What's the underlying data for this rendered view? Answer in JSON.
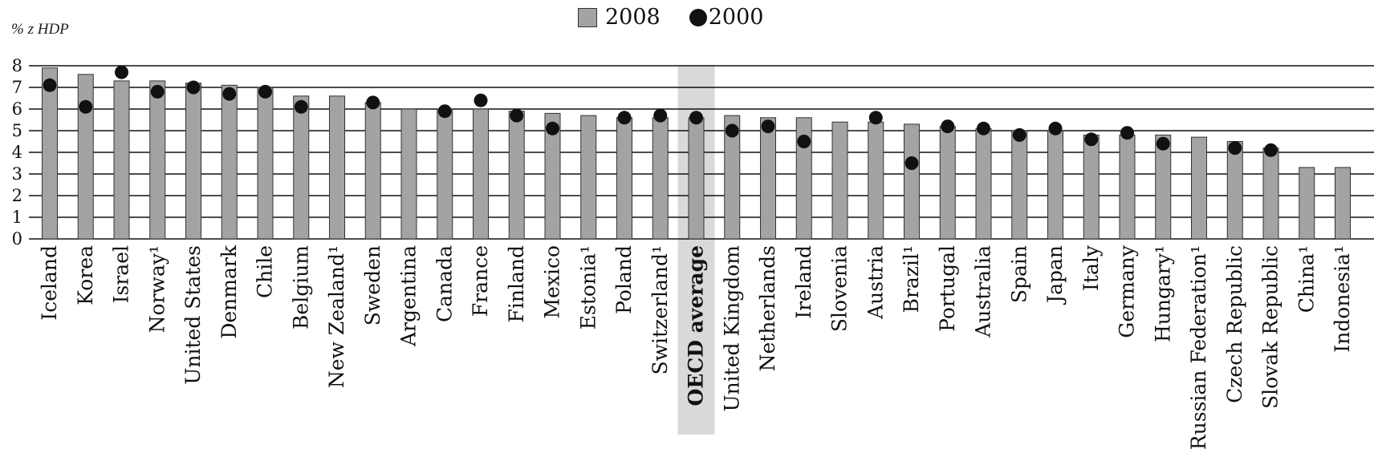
{
  "chart_data": {
    "type": "bar",
    "ylabel": "% z HDP",
    "ylim": [
      0,
      8
    ],
    "yticks": [
      "0",
      "1",
      "2",
      "3",
      "4",
      "5",
      "6",
      "7",
      "8"
    ],
    "grid": true,
    "legend_position": "top-center",
    "highlight_category": "OECD average",
    "categories": [
      "Iceland",
      "Korea",
      "Israel",
      "Norway¹",
      "United States",
      "Denmark",
      "Chile",
      "Belgium",
      "New Zealand¹",
      "Sweden",
      "Argentina",
      "Canada",
      "France",
      "Finland",
      "Mexico",
      "Estonia¹",
      "Poland",
      "Switzerland¹",
      "OECD average",
      "United Kingdom",
      "Netherlands",
      "Ireland",
      "Slovenia",
      "Austria",
      "Brazil¹",
      "Portugal",
      "Australia",
      "Spain",
      "Japan",
      "Italy",
      "Germany",
      "Hungary¹",
      "Russian Federation¹",
      "Czech Republic",
      "Slovak Republic",
      "China¹",
      "Indonesia¹"
    ],
    "series": [
      {
        "name": "2008",
        "mark": "bar",
        "color": "#a3a3a3",
        "values": [
          7.9,
          7.6,
          7.3,
          7.3,
          7.2,
          7.1,
          7.0,
          6.6,
          6.6,
          6.3,
          6.0,
          6.0,
          6.0,
          5.9,
          5.8,
          5.7,
          5.6,
          5.6,
          5.6,
          5.7,
          5.6,
          5.6,
          5.4,
          5.4,
          5.3,
          5.2,
          5.1,
          5.0,
          5.0,
          4.8,
          4.8,
          4.8,
          4.7,
          4.5,
          4.2,
          3.3,
          3.3
        ]
      },
      {
        "name": "2000",
        "mark": "dot",
        "color": "#111111",
        "values": [
          7.1,
          6.1,
          7.7,
          6.8,
          7.0,
          6.7,
          6.8,
          6.1,
          null,
          6.3,
          null,
          5.9,
          6.4,
          5.7,
          5.1,
          null,
          5.6,
          5.7,
          5.6,
          5.0,
          5.2,
          4.5,
          null,
          5.6,
          3.5,
          5.2,
          5.1,
          4.8,
          5.1,
          4.6,
          4.9,
          4.4,
          null,
          4.2,
          4.1,
          null,
          null
        ]
      }
    ]
  }
}
